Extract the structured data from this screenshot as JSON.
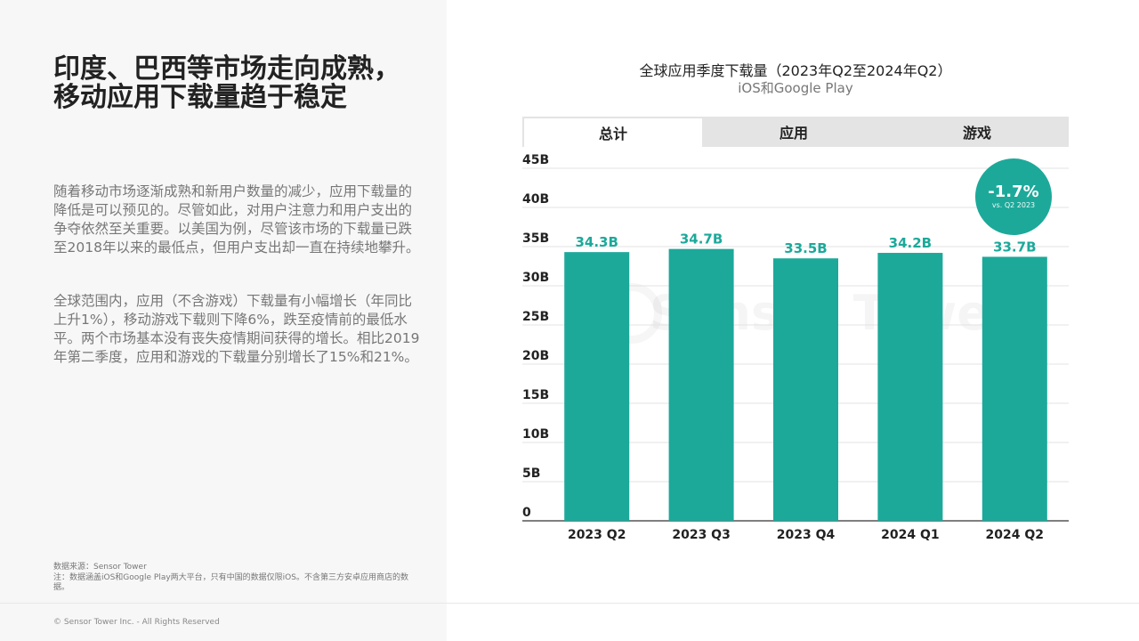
{
  "headline": [
    "印度、巴西等市场走向成熟，",
    "移动应用下载量趋于稳定"
  ],
  "paragraphs": [
    "随着移动市场逐渐成熟和新用户数量的减少，应用下载量的降低是可以预见的。尽管如此，对用户注意力和用户支出的争夺依然至关重要。以美国为例，尽管该市场的下载量已跌至2018年以来的最低点，但用户支出却一直在持续地攀升。",
    "全球范围内，应用（不含游戏）下载量有小幅增长（年同比上升1%），移动游戏下载则下降6%，跌至疫情前的最低水平。两个市场基本没有丧失疫情期间获得的增长。相比2019年第二季度，应用和游戏的下载量分别增长了15%和21%。"
  ],
  "notes": {
    "source": "数据来源：Sensor Tower",
    "note": "注：数据涵盖iOS和Google Play两大平台，只有中国的数据仅限iOS。不含第三方安卓应用商店的数据。"
  },
  "copyright": "© Sensor Tower Inc. - All Rights Reserved",
  "watermark": "Sensor Tower",
  "tabs": [
    "总计",
    "应用",
    "游戏"
  ],
  "active_tab": "总计",
  "badge": {
    "value": "-1.7%",
    "sub": "vs. Q2 2023"
  },
  "colors": {
    "bar": "#1ca99a",
    "accent": "#1ca99a",
    "label": "#1ca99a"
  },
  "chart_data": {
    "type": "bar",
    "title": "全球应用季度下载量（2023年Q2至2024年Q2）",
    "subtitle": "iOS和Google Play",
    "categories": [
      "2023 Q2",
      "2023 Q3",
      "2023 Q4",
      "2024 Q1",
      "2024 Q2"
    ],
    "values": [
      34.3,
      34.7,
      33.5,
      34.2,
      33.7
    ],
    "data_labels": [
      "34.3B",
      "34.7B",
      "33.5B",
      "34.2B",
      "33.7B"
    ],
    "y_ticks": [
      0,
      5,
      10,
      15,
      20,
      25,
      30,
      35,
      40,
      45
    ],
    "y_tick_labels": [
      "0",
      "5B",
      "10B",
      "15B",
      "20B",
      "25B",
      "30B",
      "35B",
      "40B",
      "45B"
    ],
    "ylim": [
      0,
      45
    ],
    "grid": true,
    "legend": "none"
  }
}
